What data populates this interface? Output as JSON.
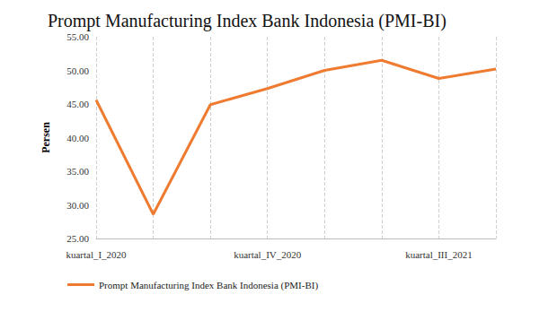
{
  "chart_data": {
    "type": "line",
    "title": "Prompt Manufacturing Index Bank Indonesia (PMI-BI)",
    "y_label": "Persen",
    "categories": [
      "kuartal_I_2020",
      null,
      null,
      "kuartal_IV_2020",
      null,
      null,
      "kuartal_III_2021",
      null
    ],
    "series": [
      {
        "name": "Prompt Manufacturing Index Bank Indonesia (PMI-BI)",
        "color": "#ee7b30",
        "values": [
          45.6,
          28.6,
          44.9,
          47.3,
          50.0,
          51.5,
          48.8,
          50.2
        ]
      }
    ],
    "ylim": [
      25,
      55
    ],
    "yticks": [
      {
        "value": 25,
        "label": "25.00"
      },
      {
        "value": 30,
        "label": "30.00"
      },
      {
        "value": 35,
        "label": "35.00"
      },
      {
        "value": 40,
        "label": "40.00"
      },
      {
        "value": 45,
        "label": "45.00"
      },
      {
        "value": 50,
        "label": "50.00"
      },
      {
        "value": 55,
        "label": "55.00"
      }
    ],
    "grid": true,
    "legend": "bottom"
  }
}
